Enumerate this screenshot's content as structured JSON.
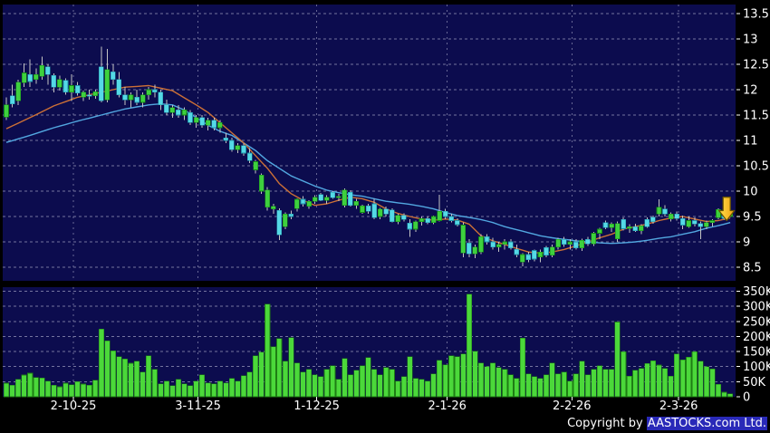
{
  "copyright": {
    "prefix": "Copyright by ",
    "highlight": "AASTOCKS.com Ltd."
  },
  "colors": {
    "background": "#0c0c4e",
    "page": "#000000",
    "grid": "#8e8eb4",
    "text": "#ffffff",
    "up": "#3ed03e",
    "up_edge": "#128a12",
    "down": "#55d9e6",
    "down_edge": "#1f93a8",
    "wick": "#c4c4c4",
    "ma_short": "#cc7036",
    "ma_long": "#52a7e0",
    "volume": "#4bd83a",
    "volume_edge": "#1e7d14",
    "marker": "#ffe14d",
    "marker2": "#f0a010",
    "marker_edge": "#6b5500",
    "highlight_box": "#2929b8"
  },
  "chart_data": {
    "type": "candlestick-with-volume",
    "title": "",
    "legend_position": "none",
    "grid": true,
    "price_axis": {
      "min": 8.5,
      "max": 13.5,
      "step": 0.5,
      "ticks": [
        13.5,
        13,
        12.5,
        12,
        11.5,
        11,
        10.5,
        10,
        9.5,
        9,
        8.5
      ],
      "labels": [
        "13.5",
        "13",
        "12.5",
        "12",
        "11.5",
        "11",
        "10.5",
        "10",
        "9.5",
        "9",
        "8.5"
      ]
    },
    "volume_axis": {
      "max_k": 350,
      "ticks_k": [
        350,
        300,
        250,
        200,
        150,
        100,
        50,
        0
      ],
      "labels": [
        "350K",
        "300K",
        "250K",
        "200K",
        "150K",
        "100K",
        "50K",
        "0"
      ]
    },
    "x_ticks": [
      {
        "label": "2-10-25",
        "index": 11
      },
      {
        "label": "3-11-25",
        "index": 32
      },
      {
        "label": "1-12-25",
        "index": 52
      },
      {
        "label": "2-1-26",
        "index": 74
      },
      {
        "label": "2-2-26",
        "index": 95
      },
      {
        "label": "2-3-26",
        "index": 113
      }
    ],
    "candles": [
      [
        11.46,
        11.85,
        11.4,
        11.7
      ],
      [
        11.88,
        12.1,
        11.65,
        11.72
      ],
      [
        11.78,
        12.2,
        11.7,
        12.15
      ],
      [
        12.14,
        12.52,
        12.05,
        12.33
      ],
      [
        12.3,
        12.6,
        12.05,
        12.16
      ],
      [
        12.2,
        12.42,
        12.12,
        12.3
      ],
      [
        12.26,
        12.65,
        12.2,
        12.48
      ],
      [
        12.45,
        12.5,
        12.1,
        12.3
      ],
      [
        12.28,
        12.32,
        11.95,
        12.05
      ],
      [
        12.05,
        12.28,
        11.98,
        12.2
      ],
      [
        12.18,
        12.22,
        11.9,
        11.95
      ],
      [
        11.95,
        12.3,
        11.78,
        12.08
      ],
      [
        12.08,
        12.15,
        11.88,
        11.93
      ],
      [
        11.85,
        11.98,
        11.78,
        11.95
      ],
      [
        11.9,
        12.0,
        11.8,
        11.88
      ],
      [
        11.88,
        12.0,
        11.82,
        11.96
      ],
      [
        12.45,
        12.85,
        11.75,
        11.78
      ],
      [
        11.8,
        12.8,
        11.75,
        12.4
      ],
      [
        12.35,
        12.5,
        12.1,
        12.2
      ],
      [
        12.2,
        12.35,
        11.85,
        11.9
      ],
      [
        11.9,
        12.05,
        11.7,
        11.8
      ],
      [
        11.8,
        11.95,
        11.65,
        11.9
      ],
      [
        11.85,
        12.0,
        11.7,
        11.75
      ],
      [
        11.75,
        11.95,
        11.65,
        11.9
      ],
      [
        11.9,
        12.05,
        11.8,
        12.0
      ],
      [
        12.0,
        12.1,
        11.85,
        11.95
      ],
      [
        11.95,
        12.0,
        11.6,
        11.7
      ],
      [
        11.7,
        11.8,
        11.5,
        11.55
      ],
      [
        11.55,
        11.7,
        11.45,
        11.65
      ],
      [
        11.6,
        11.7,
        11.45,
        11.5
      ],
      [
        11.5,
        11.65,
        11.4,
        11.6
      ],
      [
        11.55,
        11.6,
        11.3,
        11.35
      ],
      [
        11.35,
        11.5,
        11.25,
        11.45
      ],
      [
        11.45,
        11.5,
        11.25,
        11.3
      ],
      [
        11.3,
        11.45,
        11.2,
        11.4
      ],
      [
        11.4,
        11.45,
        11.2,
        11.25
      ],
      [
        11.25,
        11.4,
        11.15,
        11.35
      ],
      [
        11.05,
        11.15,
        10.95,
        11.0
      ],
      [
        11.0,
        11.05,
        10.78,
        10.82
      ],
      [
        10.82,
        10.95,
        10.75,
        10.9
      ],
      [
        10.9,
        10.95,
        10.7,
        10.75
      ],
      [
        10.75,
        10.85,
        10.55,
        10.6
      ],
      [
        10.42,
        10.62,
        10.35,
        10.58
      ],
      [
        10.0,
        10.35,
        9.95,
        10.32
      ],
      [
        9.68,
        10.08,
        9.62,
        10.02
      ],
      [
        9.65,
        9.75,
        9.55,
        9.7
      ],
      [
        9.62,
        9.66,
        9.04,
        9.14
      ],
      [
        9.3,
        9.58,
        9.25,
        9.55
      ],
      [
        9.55,
        9.62,
        9.45,
        9.5
      ],
      [
        9.66,
        9.86,
        9.6,
        9.84
      ],
      [
        9.84,
        9.9,
        9.7,
        9.75
      ],
      [
        9.7,
        9.82,
        9.65,
        9.8
      ],
      [
        9.8,
        9.92,
        9.75,
        9.88
      ],
      [
        9.93,
        9.96,
        9.8,
        9.82
      ],
      [
        9.82,
        9.92,
        9.75,
        9.88
      ],
      [
        9.98,
        10.0,
        9.85,
        9.87
      ],
      [
        9.87,
        9.95,
        9.8,
        9.9
      ],
      [
        9.72,
        10.05,
        9.68,
        10.02
      ],
      [
        9.98,
        10.02,
        9.7,
        9.72
      ],
      [
        9.72,
        9.85,
        9.65,
        9.8
      ],
      [
        9.58,
        9.73,
        9.55,
        9.71
      ],
      [
        9.71,
        9.75,
        9.55,
        9.6
      ],
      [
        9.75,
        9.85,
        9.45,
        9.48
      ],
      [
        9.5,
        9.67,
        9.45,
        9.65
      ],
      [
        9.65,
        9.7,
        9.5,
        9.55
      ],
      [
        9.63,
        9.66,
        9.38,
        9.4
      ],
      [
        9.4,
        9.55,
        9.35,
        9.52
      ],
      [
        9.52,
        9.56,
        9.4,
        9.44
      ],
      [
        9.37,
        9.45,
        9.1,
        9.25
      ],
      [
        9.25,
        9.42,
        9.2,
        9.4
      ],
      [
        9.4,
        9.5,
        9.32,
        9.46
      ],
      [
        9.46,
        9.5,
        9.35,
        9.38
      ],
      [
        9.38,
        9.52,
        9.35,
        9.5
      ],
      [
        9.42,
        9.93,
        9.4,
        9.6
      ],
      [
        9.6,
        9.65,
        9.45,
        9.5
      ],
      [
        9.5,
        9.55,
        9.38,
        9.42
      ],
      [
        9.42,
        9.46,
        9.3,
        9.34
      ],
      [
        8.78,
        9.38,
        8.7,
        9.33
      ],
      [
        8.98,
        9.05,
        8.7,
        8.76
      ],
      [
        8.76,
        8.95,
        8.68,
        8.9
      ],
      [
        8.8,
        9.15,
        8.76,
        9.1
      ],
      [
        9.1,
        9.15,
        8.95,
        9.0
      ],
      [
        9.0,
        9.08,
        8.85,
        8.9
      ],
      [
        8.9,
        9.0,
        8.8,
        8.95
      ],
      [
        8.95,
        9.05,
        8.85,
        9.0
      ],
      [
        9.0,
        9.05,
        8.85,
        8.88
      ],
      [
        8.85,
        8.95,
        8.7,
        8.75
      ],
      [
        8.6,
        8.78,
        8.52,
        8.75
      ],
      [
        8.75,
        8.8,
        8.6,
        8.65
      ],
      [
        8.83,
        8.85,
        8.62,
        8.66
      ],
      [
        8.7,
        8.85,
        8.6,
        8.8
      ],
      [
        8.89,
        8.92,
        8.7,
        8.74
      ],
      [
        8.74,
        8.95,
        8.7,
        8.9
      ],
      [
        8.9,
        9.08,
        8.85,
        9.05
      ],
      [
        9.05,
        9.1,
        8.9,
        8.95
      ],
      [
        8.95,
        9.05,
        8.85,
        9.0
      ],
      [
        9.0,
        9.05,
        8.85,
        8.88
      ],
      [
        8.88,
        9.06,
        8.82,
        9.03
      ],
      [
        9.05,
        9.1,
        8.92,
        8.96
      ],
      [
        8.96,
        9.2,
        8.92,
        9.17
      ],
      [
        9.17,
        9.28,
        9.05,
        9.25
      ],
      [
        9.38,
        9.42,
        9.25,
        9.28
      ],
      [
        9.28,
        9.38,
        9.2,
        9.35
      ],
      [
        9.06,
        9.4,
        9.0,
        9.36
      ],
      [
        9.44,
        9.48,
        9.22,
        9.26
      ],
      [
        9.26,
        9.35,
        9.18,
        9.3
      ],
      [
        9.3,
        9.36,
        9.2,
        9.22
      ],
      [
        9.22,
        9.35,
        9.15,
        9.32
      ],
      [
        9.44,
        9.48,
        9.28,
        9.3
      ],
      [
        9.49,
        9.52,
        9.36,
        9.4
      ],
      [
        9.55,
        9.84,
        9.5,
        9.68
      ],
      [
        9.65,
        9.72,
        9.5,
        9.55
      ],
      [
        9.45,
        9.58,
        9.4,
        9.55
      ],
      [
        9.55,
        9.6,
        9.42,
        9.46
      ],
      [
        9.46,
        9.52,
        9.25,
        9.33
      ],
      [
        9.3,
        9.5,
        9.28,
        9.42
      ],
      [
        9.42,
        9.48,
        9.3,
        9.35
      ],
      [
        9.36,
        9.4,
        9.05,
        9.3
      ],
      [
        9.3,
        9.42,
        9.25,
        9.38
      ],
      [
        9.38,
        9.45,
        9.3,
        9.42
      ],
      [
        9.48,
        9.66,
        9.45,
        9.64
      ],
      [
        9.58,
        9.62,
        9.44,
        9.46
      ],
      [
        9.5,
        9.62,
        9.48,
        9.6
      ]
    ],
    "volumes_k": [
      45,
      38,
      58,
      72,
      78,
      64,
      62,
      52,
      38,
      33,
      45,
      40,
      50,
      42,
      38,
      55,
      225,
      185,
      152,
      133,
      126,
      111,
      118,
      82,
      136,
      91,
      43,
      52,
      37,
      58,
      43,
      37,
      52,
      73,
      46,
      43,
      52,
      46,
      61,
      52,
      70,
      82,
      136,
      148,
      307,
      166,
      193,
      118,
      196,
      112,
      82,
      91,
      73,
      67,
      91,
      103,
      58,
      127,
      73,
      88,
      103,
      130,
      91,
      73,
      97,
      91,
      52,
      67,
      133,
      61,
      58,
      52,
      76,
      121,
      106,
      136,
      133,
      142,
      340,
      151,
      112,
      100,
      112,
      97,
      91,
      73,
      61,
      194,
      76,
      67,
      61,
      73,
      112,
      76,
      82,
      52,
      76,
      118,
      73,
      91,
      103,
      91,
      91,
      248,
      150,
      68,
      88,
      94,
      110,
      120,
      105,
      94,
      68,
      142,
      122,
      132,
      150,
      118,
      100,
      92,
      41,
      15,
      10
    ],
    "ma_short_points": [
      [
        0,
        11.23
      ],
      [
        4,
        11.45
      ],
      [
        8,
        11.68
      ],
      [
        12,
        11.85
      ],
      [
        16,
        11.95
      ],
      [
        20,
        12.05
      ],
      [
        24,
        12.08
      ],
      [
        28,
        11.98
      ],
      [
        32,
        11.7
      ],
      [
        34,
        11.55
      ],
      [
        36,
        11.35
      ],
      [
        38,
        11.15
      ],
      [
        40,
        10.95
      ],
      [
        42,
        10.7
      ],
      [
        44,
        10.45
      ],
      [
        46,
        10.15
      ],
      [
        48,
        9.95
      ],
      [
        50,
        9.82
      ],
      [
        52,
        9.72
      ],
      [
        54,
        9.75
      ],
      [
        56,
        9.82
      ],
      [
        58,
        9.88
      ],
      [
        60,
        9.85
      ],
      [
        62,
        9.78
      ],
      [
        64,
        9.65
      ],
      [
        66,
        9.56
      ],
      [
        68,
        9.5
      ],
      [
        70,
        9.45
      ],
      [
        72,
        9.43
      ],
      [
        74,
        9.45
      ],
      [
        76,
        9.43
      ],
      [
        78,
        9.35
      ],
      [
        80,
        9.12
      ],
      [
        82,
        9.02
      ],
      [
        84,
        8.95
      ],
      [
        86,
        8.87
      ],
      [
        88,
        8.8
      ],
      [
        90,
        8.78
      ],
      [
        92,
        8.8
      ],
      [
        94,
        8.85
      ],
      [
        96,
        8.92
      ],
      [
        98,
        9.0
      ],
      [
        100,
        9.08
      ],
      [
        102,
        9.15
      ],
      [
        104,
        9.25
      ],
      [
        106,
        9.3
      ],
      [
        108,
        9.35
      ],
      [
        110,
        9.42
      ],
      [
        112,
        9.47
      ],
      [
        114,
        9.5
      ],
      [
        116,
        9.45
      ],
      [
        118,
        9.4
      ],
      [
        120,
        9.42
      ],
      [
        122,
        9.47
      ]
    ],
    "ma_long_points": [
      [
        0,
        10.96
      ],
      [
        4,
        11.1
      ],
      [
        8,
        11.25
      ],
      [
        12,
        11.38
      ],
      [
        16,
        11.5
      ],
      [
        20,
        11.62
      ],
      [
        24,
        11.7
      ],
      [
        26,
        11.72
      ],
      [
        28,
        11.7
      ],
      [
        30,
        11.6
      ],
      [
        32,
        11.45
      ],
      [
        34,
        11.3
      ],
      [
        36,
        11.18
      ],
      [
        38,
        11.1
      ],
      [
        40,
        10.95
      ],
      [
        42,
        10.8
      ],
      [
        44,
        10.6
      ],
      [
        46,
        10.45
      ],
      [
        48,
        10.3
      ],
      [
        50,
        10.2
      ],
      [
        52,
        10.1
      ],
      [
        54,
        10.02
      ],
      [
        56,
        9.97
      ],
      [
        58,
        9.93
      ],
      [
        60,
        9.9
      ],
      [
        62,
        9.85
      ],
      [
        64,
        9.8
      ],
      [
        66,
        9.77
      ],
      [
        68,
        9.74
      ],
      [
        70,
        9.7
      ],
      [
        72,
        9.65
      ],
      [
        74,
        9.58
      ],
      [
        76,
        9.52
      ],
      [
        78,
        9.48
      ],
      [
        80,
        9.44
      ],
      [
        82,
        9.38
      ],
      [
        84,
        9.3
      ],
      [
        86,
        9.24
      ],
      [
        88,
        9.18
      ],
      [
        90,
        9.12
      ],
      [
        92,
        9.08
      ],
      [
        94,
        9.05
      ],
      [
        96,
        9.02
      ],
      [
        98,
        9.0
      ],
      [
        100,
        8.98
      ],
      [
        102,
        8.97
      ],
      [
        104,
        8.98
      ],
      [
        106,
        9.0
      ],
      [
        108,
        9.03
      ],
      [
        110,
        9.07
      ],
      [
        112,
        9.1
      ],
      [
        114,
        9.15
      ],
      [
        116,
        9.2
      ],
      [
        118,
        9.27
      ],
      [
        120,
        9.32
      ],
      [
        122,
        9.38
      ]
    ],
    "marker": {
      "type": "down-arrow",
      "index": 121.4,
      "tip_price": 9.42,
      "top_price": 9.88
    }
  }
}
